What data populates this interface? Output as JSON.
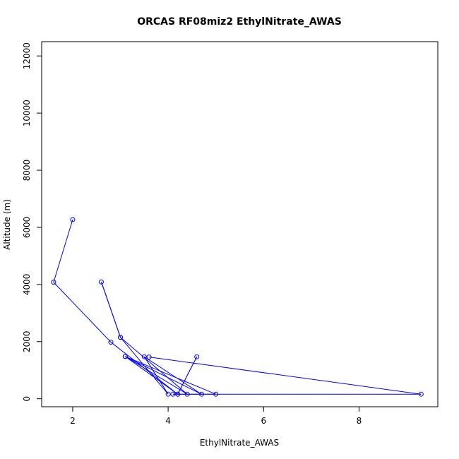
{
  "chart_data": {
    "type": "line",
    "title": "ORCAS RF08miz2 EthylNitrate_AWAS",
    "xlabel": "EthylNitrate_AWAS",
    "ylabel": "Altitude (m)",
    "xlim": [
      1.35,
      9.65
    ],
    "ylim": [
      -280,
      12500
    ],
    "x_ticks": [
      2,
      4,
      6,
      8
    ],
    "y_ticks": [
      0,
      2000,
      4000,
      6000,
      8000,
      10000,
      12000
    ],
    "x_tick_labels": [
      "2",
      "4",
      "6",
      "8"
    ],
    "y_tick_labels": [
      "0",
      "2000",
      "4000",
      "6000",
      "8000",
      "10000",
      "12000"
    ],
    "grid": false,
    "series": [
      {
        "color": "#0000ff",
        "marker": "open-circle",
        "points": [
          {
            "x": 2.0,
            "y": 6270
          },
          {
            "x": 1.6,
            "y": 4080
          },
          {
            "x": 2.8,
            "y": 1980
          },
          {
            "x": 4.2,
            "y": 160
          },
          {
            "x": 4.6,
            "y": 1470
          },
          {
            "x": 4.2,
            "y": 160
          },
          {
            "x": 3.1,
            "y": 1480
          },
          {
            "x": 4.4,
            "y": 160
          },
          {
            "x": 3.0,
            "y": 2150
          },
          {
            "x": 2.6,
            "y": 4090
          },
          {
            "x": 3.0,
            "y": 2150
          },
          {
            "x": 4.0,
            "y": 160
          },
          {
            "x": 3.5,
            "y": 1470
          },
          {
            "x": 4.7,
            "y": 160
          },
          {
            "x": 3.1,
            "y": 1480
          },
          {
            "x": 5.0,
            "y": 160
          },
          {
            "x": 4.1,
            "y": 160
          },
          {
            "x": 9.3,
            "y": 160
          },
          {
            "x": 3.6,
            "y": 1460
          }
        ]
      }
    ]
  }
}
